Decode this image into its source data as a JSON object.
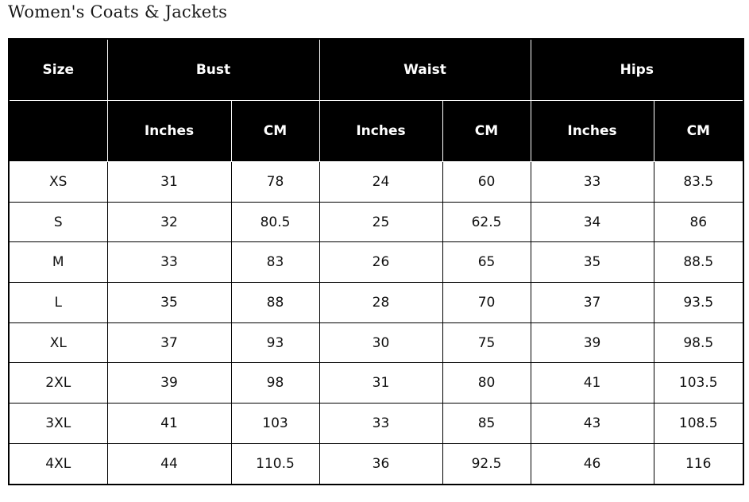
{
  "title": "Women's Coats & Jackets",
  "table": {
    "group_headers": [
      "Size",
      "Bust",
      "Waist",
      "Hips"
    ],
    "sub_headers": [
      "Inches",
      "CM",
      "Inches",
      "CM",
      "Inches",
      "CM"
    ],
    "rows": [
      [
        "XS",
        "31",
        "78",
        "24",
        "60",
        "33",
        "83.5"
      ],
      [
        "S",
        "32",
        "80.5",
        "25",
        "62.5",
        "34",
        "86"
      ],
      [
        "M",
        "33",
        "83",
        "26",
        "65",
        "35",
        "88.5"
      ],
      [
        "L",
        "35",
        "88",
        "28",
        "70",
        "37",
        "93.5"
      ],
      [
        "XL",
        "37",
        "93",
        "30",
        "75",
        "39",
        "98.5"
      ],
      [
        "2XL",
        "39",
        "98",
        "31",
        "80",
        "41",
        "103.5"
      ],
      [
        "3XL",
        "41",
        "103",
        "33",
        "85",
        "43",
        "108.5"
      ],
      [
        "4XL",
        "44",
        "110.5",
        "36",
        "92.5",
        "46",
        "116"
      ]
    ]
  }
}
